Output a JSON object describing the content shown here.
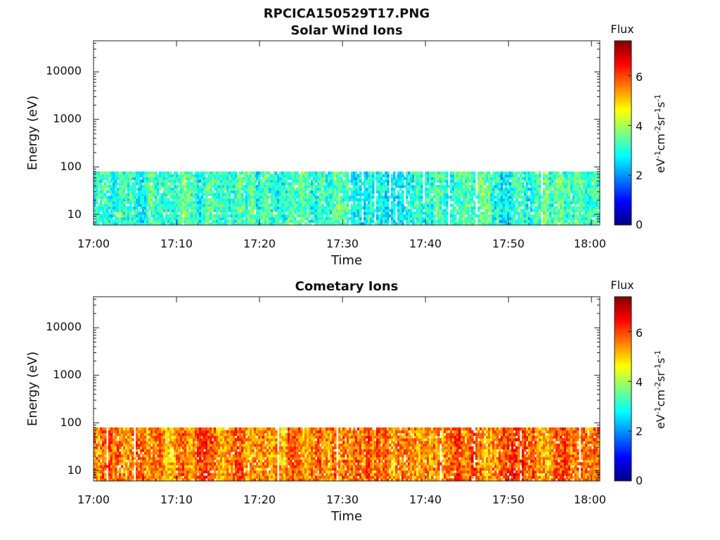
{
  "figure": {
    "title": "RPCICA150529T17.PNG"
  },
  "colormap": {
    "name": "jet",
    "stops": [
      "#00007f",
      "#0000ff",
      "#007fff",
      "#00ffff",
      "#7fff7f",
      "#ffff00",
      "#ff7f00",
      "#ff0000",
      "#7f0000"
    ]
  },
  "chart_data": [
    {
      "type": "heatmap",
      "title": "Solar Wind Ions",
      "xlabel": "Time",
      "ylabel": "Energy (eV)",
      "y_scale": "log",
      "ylim": [
        6,
        45000
      ],
      "y_ticks": [
        "10",
        "100",
        "1000",
        "10000"
      ],
      "x_ticks": [
        "17:00",
        "17:10",
        "17:20",
        "17:30",
        "17:40",
        "17:50",
        "18:00"
      ],
      "xlim_minutes": [
        0,
        61
      ],
      "data_energy_range": [
        6,
        80
      ],
      "colorbar": {
        "label": "Flux",
        "units": "eV-1cm-2sr-1s-1",
        "range": [
          0,
          7.4
        ],
        "ticks": [
          "0",
          "2",
          "4",
          "6"
        ]
      },
      "typical_flux": 3.2
    },
    {
      "type": "heatmap",
      "title": "Cometary Ions",
      "xlabel": "Time",
      "ylabel": "Energy (eV)",
      "y_scale": "log",
      "ylim": [
        6,
        45000
      ],
      "y_ticks": [
        "10",
        "100",
        "1000",
        "10000"
      ],
      "x_ticks": [
        "17:00",
        "17:10",
        "17:20",
        "17:30",
        "17:40",
        "17:50",
        "18:00"
      ],
      "xlim_minutes": [
        0,
        61
      ],
      "data_energy_range": [
        6,
        80
      ],
      "colorbar": {
        "label": "Flux",
        "units": "eV-1cm-2sr-1s-1",
        "range": [
          0,
          7.4
        ],
        "ticks": [
          "0",
          "2",
          "4",
          "6"
        ]
      },
      "typical_flux": 5.6
    }
  ]
}
